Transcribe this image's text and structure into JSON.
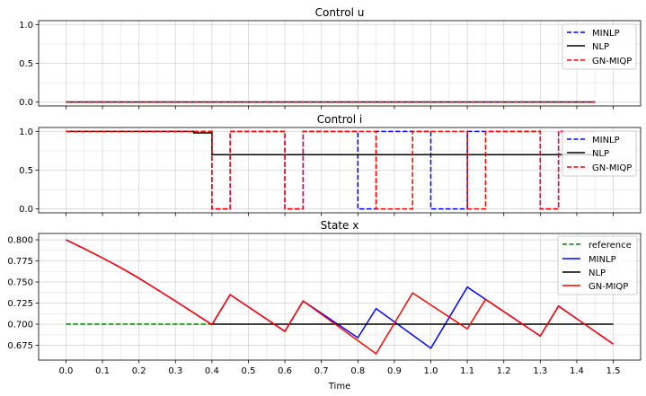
{
  "chart_data": [
    {
      "type": "line",
      "title": "Control u",
      "xlabel": "",
      "ylabel": "",
      "xlim": [
        -0.075,
        1.575
      ],
      "ylim": [
        -0.05,
        1.05
      ],
      "yticks": [
        "0.0",
        "0.5",
        "1.0"
      ],
      "grid": true,
      "legend_position": "top-right",
      "series": [
        {
          "name": "MINLP",
          "color": "#0000ff",
          "dash": true,
          "x": [
            0,
            1.45
          ],
          "y": [
            0,
            0
          ]
        },
        {
          "name": "NLP",
          "color": "#000000",
          "dash": false,
          "x": [
            0,
            1.45
          ],
          "y": [
            0,
            0
          ]
        },
        {
          "name": "GN-MIQP",
          "color": "#ff0000",
          "dash": true,
          "x": [
            0,
            1.45
          ],
          "y": [
            0,
            0
          ]
        }
      ]
    },
    {
      "type": "line",
      "title": "Control i",
      "xlabel": "",
      "ylabel": "",
      "xlim": [
        -0.075,
        1.575
      ],
      "ylim": [
        -0.05,
        1.05
      ],
      "yticks": [
        "0.0",
        "0.5",
        "1.0"
      ],
      "grid": true,
      "legend_position": "top-right",
      "series": [
        {
          "name": "MINLP",
          "color": "#0000ff",
          "dash": true,
          "x": [
            0,
            0.4,
            0.4,
            0.45,
            0.45,
            0.6,
            0.6,
            0.65,
            0.65,
            0.8,
            0.8,
            0.85,
            0.85,
            1.0,
            1.0,
            1.1,
            1.1,
            1.3,
            1.3,
            1.35,
            1.35,
            1.45
          ],
          "y": [
            1,
            1,
            0,
            0,
            1,
            1,
            0,
            0,
            1,
            1,
            0,
            0,
            1,
            1,
            0,
            0,
            1,
            1,
            0,
            0,
            1,
            1
          ]
        },
        {
          "name": "NLP",
          "color": "#000000",
          "dash": false,
          "x": [
            0,
            0.35,
            0.35,
            0.4,
            0.4,
            1.45
          ],
          "y": [
            1,
            1,
            0.98,
            0.98,
            0.7,
            0.7
          ]
        },
        {
          "name": "GN-MIQP",
          "color": "#ff0000",
          "dash": true,
          "x": [
            0,
            0.4,
            0.4,
            0.45,
            0.45,
            0.6,
            0.6,
            0.65,
            0.65,
            0.85,
            0.85,
            0.95,
            0.95,
            1.1,
            1.1,
            1.15,
            1.15,
            1.3,
            1.3,
            1.35,
            1.35,
            1.45
          ],
          "y": [
            1,
            1,
            0,
            0,
            1,
            1,
            0,
            0,
            1,
            1,
            0,
            0,
            1,
            1,
            0,
            0,
            1,
            1,
            0,
            0,
            1,
            1
          ]
        }
      ]
    },
    {
      "type": "line",
      "title": "State x",
      "xlabel": "Time",
      "ylabel": "",
      "xlim": [
        -0.075,
        1.575
      ],
      "ylim": [
        0.6575,
        0.8075
      ],
      "yticks": [
        "0.675",
        "0.700",
        "0.725",
        "0.750",
        "0.775",
        "0.800"
      ],
      "xticks": [
        "0.0",
        "0.1",
        "0.2",
        "0.3",
        "0.4",
        "0.5",
        "0.6",
        "0.7",
        "0.8",
        "0.9",
        "1.0",
        "1.1",
        "1.2",
        "1.3",
        "1.4",
        "1.5"
      ],
      "grid": true,
      "legend_position": "top-right",
      "series": [
        {
          "name": "reference",
          "color": "#008000",
          "dash": true,
          "x": [
            0,
            0.4
          ],
          "y": [
            0.7,
            0.7
          ]
        },
        {
          "name": "MINLP",
          "color": "#0000ff",
          "dash": false,
          "x": [
            0,
            0.05,
            0.1,
            0.15,
            0.2,
            0.25,
            0.3,
            0.35,
            0.4,
            0.45,
            0.6,
            0.65,
            0.8,
            0.85,
            1.0,
            1.1,
            1.3,
            1.35,
            1.5
          ],
          "y": [
            0.8,
            0.7895,
            0.7785,
            0.767,
            0.7545,
            0.741,
            0.7275,
            0.7135,
            0.6995,
            0.735,
            0.6915,
            0.7275,
            0.684,
            0.7185,
            0.6715,
            0.744,
            0.686,
            0.7215,
            0.6765
          ]
        },
        {
          "name": "NLP",
          "color": "#000000",
          "dash": false,
          "x": [
            0.4,
            1.5
          ],
          "y": [
            0.7,
            0.7
          ]
        },
        {
          "name": "GN-MIQP",
          "color": "#ff0000",
          "dash": false,
          "x": [
            0,
            0.05,
            0.1,
            0.15,
            0.2,
            0.25,
            0.3,
            0.35,
            0.4,
            0.45,
            0.6,
            0.65,
            0.85,
            0.95,
            1.1,
            1.15,
            1.3,
            1.35,
            1.5
          ],
          "y": [
            0.8,
            0.7895,
            0.7785,
            0.767,
            0.7545,
            0.741,
            0.7275,
            0.7135,
            0.6995,
            0.735,
            0.6915,
            0.7275,
            0.665,
            0.737,
            0.6945,
            0.7295,
            0.686,
            0.7215,
            0.6765
          ]
        }
      ]
    }
  ]
}
